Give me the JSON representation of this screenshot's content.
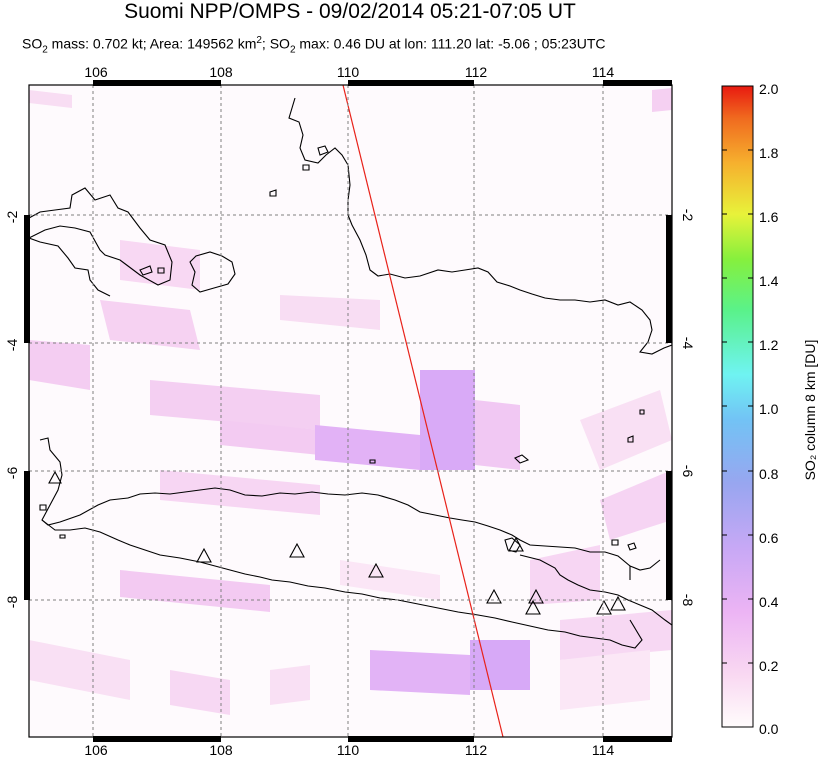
{
  "title": "Suomi NPP/OMPS - 09/02/2014 05:21-07:05 UT",
  "subtitle": {
    "so2_mass_label": "SO",
    "so2_mass_text": " mass: 0.702 kt; Area: 149562 km",
    "area_sup": "2",
    "max_label": "; SO",
    "max_text": " max: 0.46 DU at lon: 111.20 lat: -5.06 ; 05:23UTC",
    "sub2": "2"
  },
  "map": {
    "lon_ticks": [
      "106",
      "108",
      "110",
      "112",
      "114"
    ],
    "lat_ticks": [
      "-2",
      "-4",
      "-6",
      "-8"
    ],
    "volcano_markers": 12
  },
  "colorbar": {
    "label": "SO₂ column 8 km [DU]",
    "ticks": [
      "2.0",
      "1.8",
      "1.6",
      "1.4",
      "1.2",
      "1.0",
      "0.8",
      "0.6",
      "0.4",
      "0.2",
      "0.0"
    ],
    "colors": [
      "#fffcfc",
      "#f9d0f0",
      "#e6a8f5",
      "#b9a2f5",
      "#8fa6f0",
      "#6ec8f6",
      "#6ff5f0",
      "#56f26f",
      "#9cf03a",
      "#f2f037",
      "#f5b02e",
      "#f0641f",
      "#e81e12"
    ]
  }
}
